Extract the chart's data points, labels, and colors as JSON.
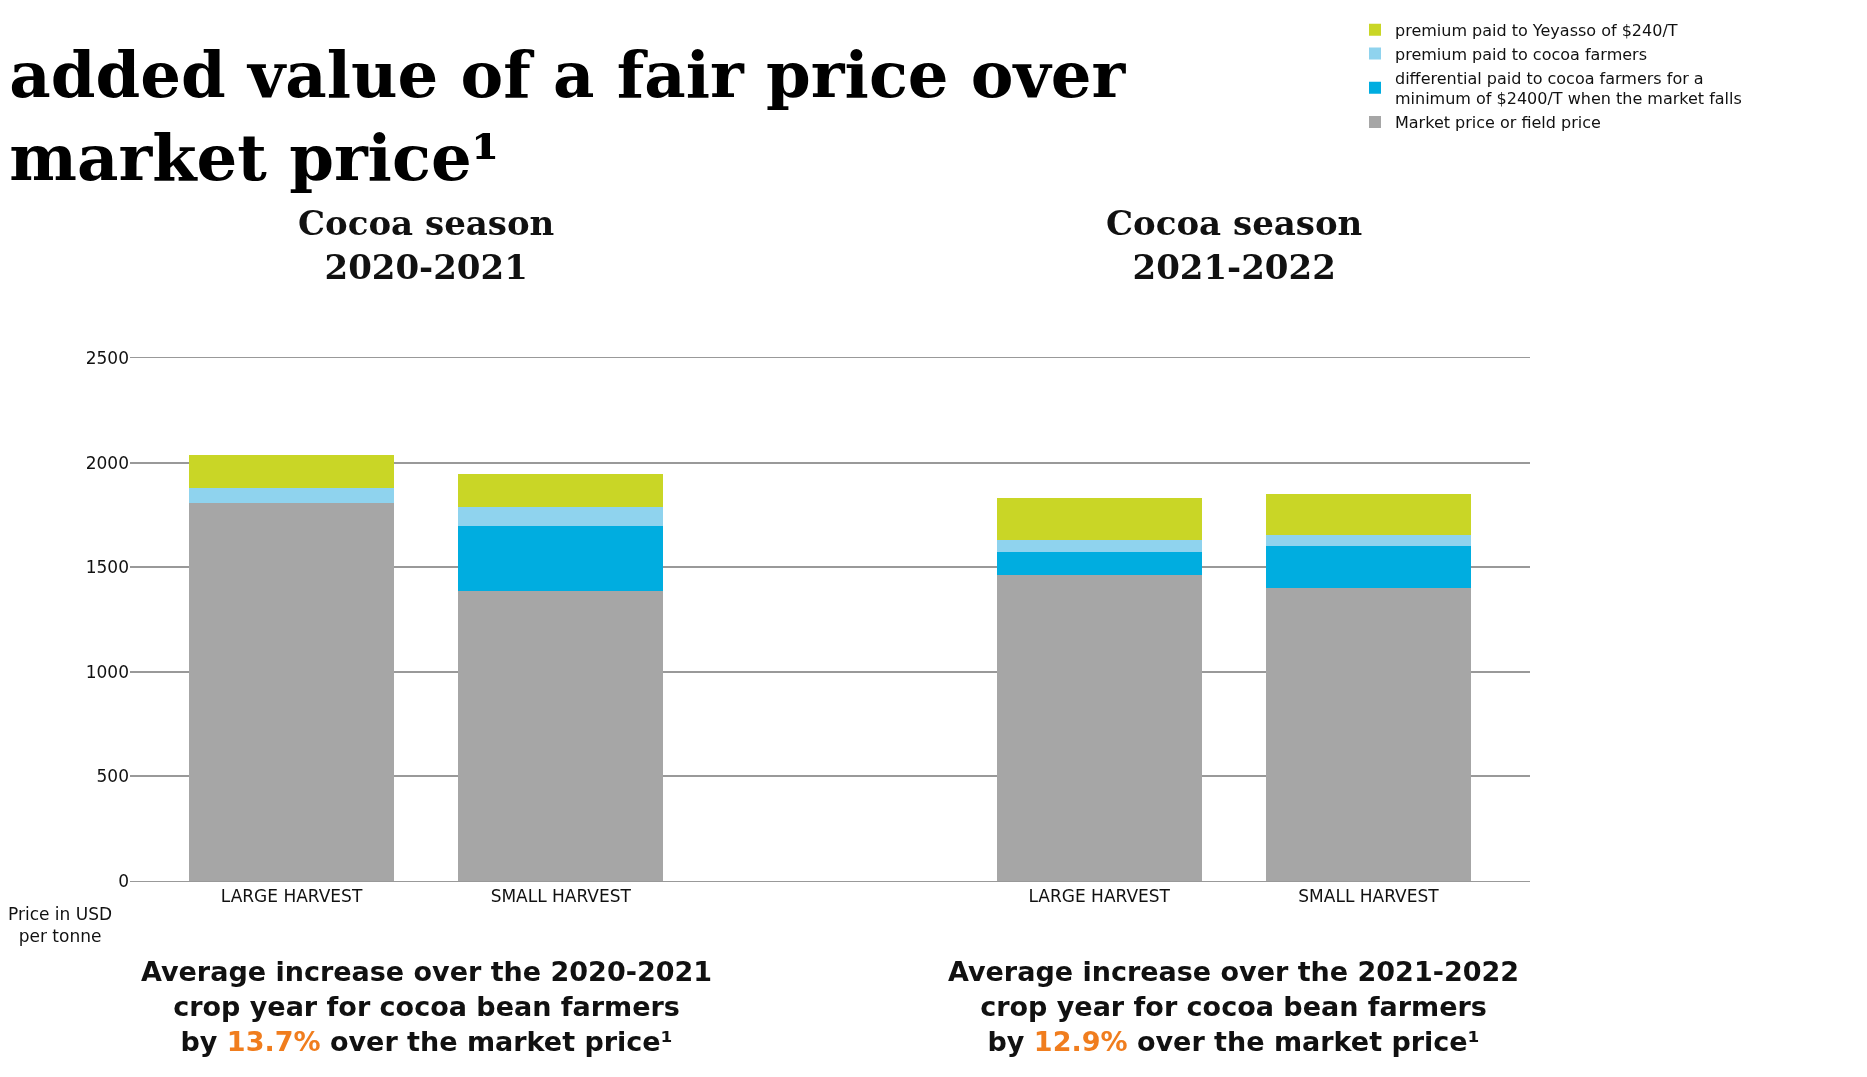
{
  "chart_data": {
    "type": "bar",
    "stacked": true,
    "title": "added value of a fair price over\nmarket price¹",
    "ylabel": "Price in USD\nper tonne",
    "categories": [
      "LARGE HARVEST",
      "SMALL HARVEST",
      null,
      "LARGE HARVEST",
      "SMALL HARVEST"
    ],
    "series": [
      {
        "name": "Market price or field price",
        "color": "#a6a6a6",
        "values": [
          1805,
          1385,
          null,
          1463,
          1401
        ]
      },
      {
        "name": "differential paid to cocoa farmers for a\nminimum of $2400/T when the market falls",
        "color": "#00ade0",
        "values": [
          0,
          313,
          null,
          112,
          202
        ]
      },
      {
        "name": "premium paid to cocoa farmers",
        "color": "#8fd3ee",
        "values": [
          73,
          90,
          null,
          56,
          51
        ]
      },
      {
        "name": "premium paid to Yeyasso of $240/T",
        "color": "#c9d626",
        "values": [
          157,
          157,
          null,
          202,
          196
        ]
      }
    ],
    "ylim": [
      0,
      2500
    ],
    "yticks": [
      0,
      500,
      1000,
      1500,
      2000,
      2500
    ],
    "grid": "y",
    "legend": "top right",
    "annotations": [
      "Cocoa season\n2020-2021",
      "Cocoa season\n2021-2022",
      "Average increase over the 2020-2021\ncrop year for cocoa bean farmers\nby 13.7% over the market price¹",
      "Average increase over the 2021-2022\ncrop year for cocoa bean farmers\nby 12.9% over the market price¹"
    ]
  }
}
